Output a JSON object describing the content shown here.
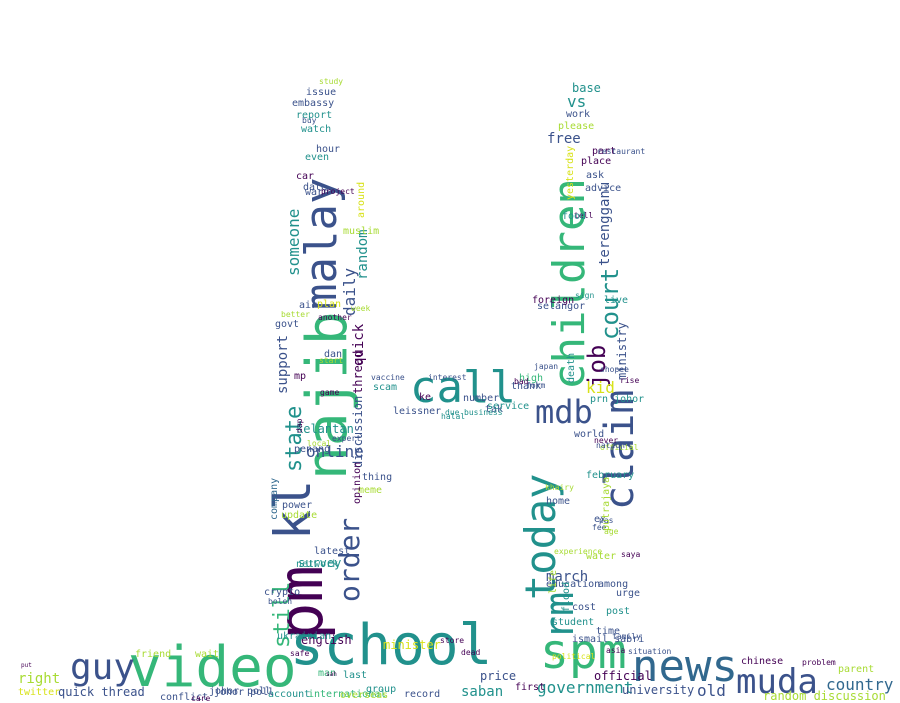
{
  "palette": {
    "purple": "#440154",
    "indigo": "#3b528b",
    "slate": "#31688e",
    "teal": "#21918c",
    "green": "#35b779",
    "lime": "#a8db34",
    "yellow": "#d8e219"
  },
  "words": [
    "video",
    "school",
    "spm",
    "news",
    "muda",
    "guy",
    "pm",
    "kl",
    "najib",
    "malay",
    "call",
    "children",
    "today",
    "rm",
    "claim",
    "mdb",
    "job",
    "court",
    "order",
    "still",
    "daily",
    "random",
    "discussion",
    "quick",
    "thread",
    "state",
    "support",
    "someone",
    "online",
    "country",
    "government",
    "old",
    "university",
    "saban",
    "price",
    "first",
    "minister",
    "english",
    "right",
    "quick thread",
    "twitter",
    "friend",
    "wait",
    "poll",
    "johor",
    "account",
    "international",
    "record",
    "group",
    "overseas",
    "official",
    "random discussion",
    "parent",
    "problem",
    "chinese",
    "free",
    "vs",
    "base",
    "work",
    "please",
    "ask",
    "tell",
    "food",
    "terengganu",
    "selangor",
    "foreign",
    "live",
    "ministry",
    "kid",
    "high",
    "thank",
    "number",
    "prn johor",
    "tak",
    "service",
    "world",
    "march",
    "education",
    "time",
    "student",
    "post",
    "ex",
    "water",
    "home",
    "pas",
    "fee",
    "age",
    "saya",
    "kelantan",
    "penang",
    "survey",
    "latest",
    "company",
    "dap",
    "report",
    "even",
    "watch",
    "car",
    "warn",
    "date",
    "issue",
    "embassy",
    "mp",
    "scam",
    "vaccine",
    "meme",
    "opinion",
    "thing",
    "leissner",
    "business",
    "due",
    "interest",
    "ke",
    "official",
    "put",
    "dead",
    "store",
    "last",
    "man",
    "urge",
    "among",
    "nation",
    "never",
    "place",
    "advice",
    "hour",
    "dan",
    "start",
    "plan",
    "week",
    "air",
    "govt",
    "muslim",
    "around",
    "another",
    "yesterday",
    "part",
    "death",
    "khairy",
    "shopee",
    "rise",
    "february",
    "crypto",
    "network",
    "boleh",
    "power",
    "update",
    "cost",
    "flood",
    "putrajaya",
    "life",
    "ismail sabri",
    "family",
    "situation",
    "asia",
    "political",
    "conflict",
    "care",
    "johor poll",
    "ukrainian",
    "safe",
    "game",
    "expert",
    "local",
    "better",
    "study",
    "buy",
    "project",
    "sign",
    "restaurant",
    "japan",
    "halal",
    "form",
    "bad",
    "sah",
    "experience"
  ]
}
